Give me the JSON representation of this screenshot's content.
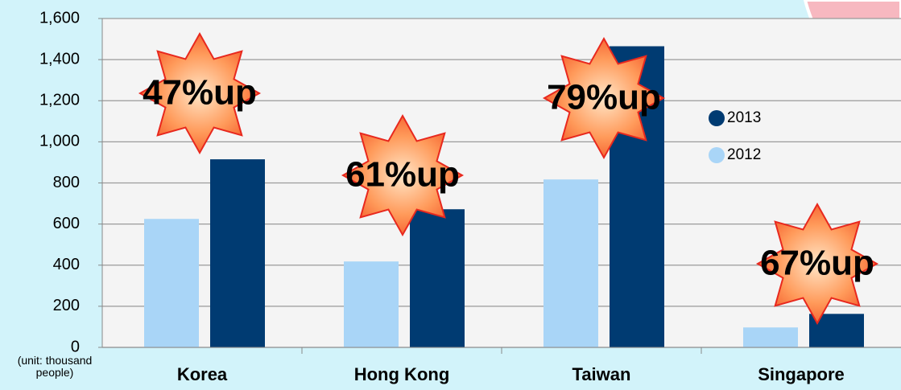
{
  "chart_data": {
    "type": "bar",
    "categories": [
      "Korea",
      "Hong Kong",
      "Taiwan",
      "Singapore"
    ],
    "series": [
      {
        "name": "2012",
        "color": "#a9d5f7",
        "values": [
          625,
          418,
          817,
          97
        ]
      },
      {
        "name": "2013",
        "color": "#003b72",
        "values": [
          915,
          672,
          1465,
          163
        ]
      }
    ],
    "ylim": [
      0,
      1600
    ],
    "yticks": [
      0,
      200,
      400,
      600,
      800,
      {
        "value": 1000,
        "label": "1,000"
      },
      {
        "value": 1200,
        "label": "1,200"
      },
      {
        "value": 1400,
        "label": "1,400"
      },
      {
        "value": 1600,
        "label": "1,600"
      }
    ],
    "grid": true,
    "unit_label": "(unit: thousand people)",
    "annotations": [
      "47%up",
      "61%up",
      "79%up",
      "67%up"
    ]
  }
}
